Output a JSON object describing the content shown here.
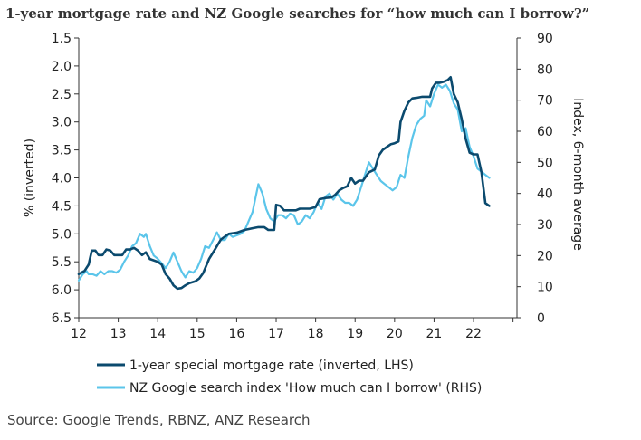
{
  "title": "1-year mortgage rate and NZ Google searches for “how much can I borrow?”",
  "source": "Source: Google Trends, RBNZ, ANZ Research",
  "chart_data": {
    "type": "line",
    "title": "1-year mortgage rate and NZ Google searches for “how much can I borrow?”",
    "x_tick_labels": [
      "12",
      "13",
      "14",
      "15",
      "16",
      "17",
      "18",
      "19",
      "20",
      "21",
      "22"
    ],
    "x_ticks": [
      2012,
      2013,
      2014,
      2015,
      2016,
      2017,
      2018,
      2019,
      2020,
      2021,
      2022
    ],
    "xlim": [
      2012,
      2023.1
    ],
    "left_axis": {
      "label": "% (inverted)",
      "inverted": true,
      "ylim": [
        1.5,
        6.5
      ],
      "ticks": [
        "1.5",
        "2.0",
        "2.5",
        "3.0",
        "3.5",
        "4.0",
        "4.5",
        "5.0",
        "5.5",
        "6.0",
        "6.5"
      ]
    },
    "right_axis": {
      "label": "Index, 6-month average",
      "ylim": [
        0,
        90
      ],
      "ticks": [
        "0",
        "10",
        "20",
        "30",
        "40",
        "50",
        "60",
        "70",
        "80",
        "90"
      ]
    },
    "grid": false,
    "legend_position": "bottom",
    "colors": {
      "mortgage": "#0b4a6e",
      "google": "#5bc5ea"
    },
    "series": [
      {
        "name": "1-year special mortgage rate (inverted, LHS)",
        "axis": "left",
        "color": "#0b4a6e",
        "points": [
          [
            2012.0,
            5.72
          ],
          [
            2012.15,
            5.66
          ],
          [
            2012.25,
            5.55
          ],
          [
            2012.33,
            5.3
          ],
          [
            2012.42,
            5.3
          ],
          [
            2012.5,
            5.38
          ],
          [
            2012.6,
            5.38
          ],
          [
            2012.7,
            5.28
          ],
          [
            2012.8,
            5.3
          ],
          [
            2012.9,
            5.38
          ],
          [
            2013.0,
            5.38
          ],
          [
            2013.1,
            5.38
          ],
          [
            2013.2,
            5.28
          ],
          [
            2013.3,
            5.28
          ],
          [
            2013.4,
            5.25
          ],
          [
            2013.5,
            5.3
          ],
          [
            2013.6,
            5.38
          ],
          [
            2013.7,
            5.33
          ],
          [
            2013.8,
            5.45
          ],
          [
            2014.0,
            5.5
          ],
          [
            2014.1,
            5.55
          ],
          [
            2014.2,
            5.72
          ],
          [
            2014.3,
            5.8
          ],
          [
            2014.4,
            5.92
          ],
          [
            2014.5,
            5.98
          ],
          [
            2014.6,
            5.97
          ],
          [
            2014.7,
            5.92
          ],
          [
            2014.8,
            5.88
          ],
          [
            2014.95,
            5.85
          ],
          [
            2015.05,
            5.8
          ],
          [
            2015.15,
            5.7
          ],
          [
            2015.3,
            5.45
          ],
          [
            2015.45,
            5.28
          ],
          [
            2015.6,
            5.1
          ],
          [
            2015.8,
            5.0
          ],
          [
            2016.0,
            4.98
          ],
          [
            2016.2,
            4.93
          ],
          [
            2016.4,
            4.9
          ],
          [
            2016.55,
            4.88
          ],
          [
            2016.7,
            4.88
          ],
          [
            2016.8,
            4.93
          ],
          [
            2016.9,
            4.93
          ],
          [
            2016.95,
            4.93
          ],
          [
            2017.0,
            4.48
          ],
          [
            2017.1,
            4.5
          ],
          [
            2017.2,
            4.58
          ],
          [
            2017.35,
            4.58
          ],
          [
            2017.5,
            4.58
          ],
          [
            2017.6,
            4.55
          ],
          [
            2017.7,
            4.55
          ],
          [
            2017.85,
            4.55
          ],
          [
            2018.0,
            4.52
          ],
          [
            2018.1,
            4.38
          ],
          [
            2018.25,
            4.36
          ],
          [
            2018.4,
            4.35
          ],
          [
            2018.5,
            4.3
          ],
          [
            2018.6,
            4.22
          ],
          [
            2018.7,
            4.18
          ],
          [
            2018.8,
            4.15
          ],
          [
            2018.9,
            4.0
          ],
          [
            2019.0,
            4.1
          ],
          [
            2019.1,
            4.05
          ],
          [
            2019.2,
            4.05
          ],
          [
            2019.35,
            3.9
          ],
          [
            2019.5,
            3.85
          ],
          [
            2019.6,
            3.6
          ],
          [
            2019.7,
            3.5
          ],
          [
            2019.8,
            3.45
          ],
          [
            2019.9,
            3.4
          ],
          [
            2020.0,
            3.38
          ],
          [
            2020.1,
            3.35
          ],
          [
            2020.15,
            3.0
          ],
          [
            2020.25,
            2.8
          ],
          [
            2020.35,
            2.65
          ],
          [
            2020.45,
            2.58
          ],
          [
            2020.55,
            2.57
          ],
          [
            2020.7,
            2.55
          ],
          [
            2020.8,
            2.55
          ],
          [
            2020.9,
            2.55
          ],
          [
            2020.95,
            2.4
          ],
          [
            2021.05,
            2.3
          ],
          [
            2021.15,
            2.3
          ],
          [
            2021.25,
            2.28
          ],
          [
            2021.35,
            2.25
          ],
          [
            2021.42,
            2.2
          ],
          [
            2021.5,
            2.5
          ],
          [
            2021.6,
            2.65
          ],
          [
            2021.7,
            2.95
          ],
          [
            2021.8,
            3.3
          ],
          [
            2021.9,
            3.55
          ],
          [
            2022.0,
            3.58
          ],
          [
            2022.1,
            3.58
          ],
          [
            2022.2,
            3.9
          ],
          [
            2022.3,
            4.45
          ],
          [
            2022.4,
            4.5
          ]
        ]
      },
      {
        "name": "NZ Google search index 'How much can I borrow' (RHS)",
        "axis": "right",
        "color": "#5bc5ea",
        "points": [
          [
            2012.0,
            12
          ],
          [
            2012.1,
            14
          ],
          [
            2012.2,
            15
          ],
          [
            2012.25,
            14
          ],
          [
            2012.35,
            14
          ],
          [
            2012.45,
            13.5
          ],
          [
            2012.55,
            15
          ],
          [
            2012.65,
            14
          ],
          [
            2012.75,
            15
          ],
          [
            2012.85,
            15
          ],
          [
            2012.95,
            14.5
          ],
          [
            2013.05,
            15.5
          ],
          [
            2013.15,
            18
          ],
          [
            2013.25,
            20
          ],
          [
            2013.35,
            23
          ],
          [
            2013.45,
            24
          ],
          [
            2013.55,
            27
          ],
          [
            2013.65,
            26
          ],
          [
            2013.7,
            27
          ],
          [
            2013.8,
            23
          ],
          [
            2013.9,
            20
          ],
          [
            2014.0,
            19
          ],
          [
            2014.1,
            17.5
          ],
          [
            2014.2,
            16
          ],
          [
            2014.3,
            18
          ],
          [
            2014.4,
            21
          ],
          [
            2014.5,
            18
          ],
          [
            2014.6,
            15
          ],
          [
            2014.7,
            13
          ],
          [
            2014.8,
            15
          ],
          [
            2014.9,
            14.5
          ],
          [
            2015.0,
            16
          ],
          [
            2015.1,
            19
          ],
          [
            2015.2,
            23
          ],
          [
            2015.3,
            22.5
          ],
          [
            2015.4,
            25
          ],
          [
            2015.5,
            27.5
          ],
          [
            2015.6,
            25
          ],
          [
            2015.7,
            25
          ],
          [
            2015.8,
            27
          ],
          [
            2015.9,
            26
          ],
          [
            2016.0,
            26.5
          ],
          [
            2016.1,
            27
          ],
          [
            2016.2,
            28
          ],
          [
            2016.3,
            31
          ],
          [
            2016.4,
            34
          ],
          [
            2016.5,
            40
          ],
          [
            2016.55,
            43
          ],
          [
            2016.65,
            40
          ],
          [
            2016.75,
            35
          ],
          [
            2016.85,
            32
          ],
          [
            2016.95,
            31
          ],
          [
            2017.05,
            33
          ],
          [
            2017.15,
            33
          ],
          [
            2017.25,
            32
          ],
          [
            2017.35,
            33.5
          ],
          [
            2017.45,
            33
          ],
          [
            2017.55,
            30
          ],
          [
            2017.65,
            31
          ],
          [
            2017.75,
            33
          ],
          [
            2017.85,
            32
          ],
          [
            2017.95,
            34
          ],
          [
            2018.05,
            37
          ],
          [
            2018.15,
            35
          ],
          [
            2018.25,
            39
          ],
          [
            2018.35,
            40
          ],
          [
            2018.45,
            38
          ],
          [
            2018.55,
            40
          ],
          [
            2018.65,
            38
          ],
          [
            2018.75,
            37
          ],
          [
            2018.85,
            37
          ],
          [
            2018.95,
            36
          ],
          [
            2019.05,
            38
          ],
          [
            2019.15,
            42
          ],
          [
            2019.25,
            46
          ],
          [
            2019.35,
            50
          ],
          [
            2019.45,
            48
          ],
          [
            2019.55,
            46
          ],
          [
            2019.65,
            44
          ],
          [
            2019.75,
            43
          ],
          [
            2019.85,
            42
          ],
          [
            2019.95,
            41
          ],
          [
            2020.05,
            42
          ],
          [
            2020.15,
            46
          ],
          [
            2020.25,
            45
          ],
          [
            2020.35,
            52
          ],
          [
            2020.45,
            58
          ],
          [
            2020.55,
            62
          ],
          [
            2020.65,
            64
          ],
          [
            2020.75,
            65
          ],
          [
            2020.8,
            70
          ],
          [
            2020.9,
            68
          ],
          [
            2021.0,
            72
          ],
          [
            2021.1,
            75
          ],
          [
            2021.2,
            74
          ],
          [
            2021.3,
            75
          ],
          [
            2021.4,
            73
          ],
          [
            2021.5,
            69
          ],
          [
            2021.6,
            67
          ],
          [
            2021.7,
            60
          ],
          [
            2021.8,
            61
          ],
          [
            2021.9,
            55
          ],
          [
            2022.0,
            52
          ],
          [
            2022.1,
            48
          ],
          [
            2022.2,
            47
          ],
          [
            2022.3,
            46
          ],
          [
            2022.4,
            45
          ]
        ]
      }
    ]
  }
}
